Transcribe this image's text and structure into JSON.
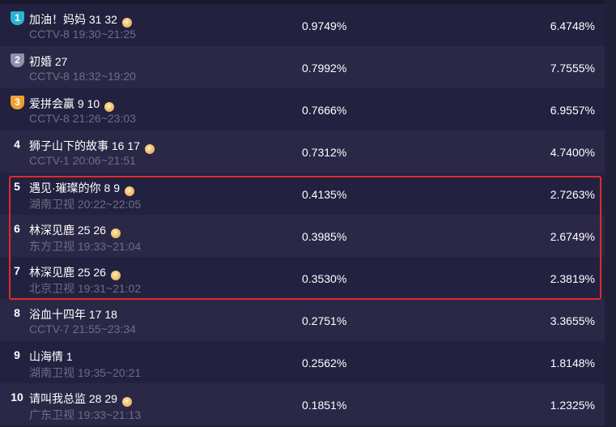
{
  "rows": [
    {
      "rank": "1",
      "medal": "#2bb3d6",
      "title": "加油！妈妈 31 32",
      "coin": true,
      "sub": "CCTV-8 19:30~21:25",
      "v1": "0.9749%",
      "v2": "6.4748%"
    },
    {
      "rank": "2",
      "medal": "#8d92ad",
      "title": "初婚 27",
      "coin": false,
      "sub": "CCTV-8 18:32~19:20",
      "v1": "0.7992%",
      "v2": "7.7555%"
    },
    {
      "rank": "3",
      "medal": "#f0a030",
      "title": "爱拼会赢 9 10",
      "coin": true,
      "sub": "CCTV-8 21:26~23:03",
      "v1": "0.7666%",
      "v2": "6.9557%"
    },
    {
      "rank": "4",
      "title": "狮子山下的故事 16 17",
      "coin": true,
      "sub": "CCTV-1 20:06~21:51",
      "v1": "0.7312%",
      "v2": "4.7400%"
    },
    {
      "rank": "5",
      "title": "遇见·璀璨的你 8 9",
      "coin": true,
      "sub": "湖南卫视 20:22~22:05",
      "v1": "0.4135%",
      "v2": "2.7263%"
    },
    {
      "rank": "6",
      "title": "林深见鹿 25 26",
      "coin": true,
      "sub": "东方卫视 19:33~21:04",
      "v1": "0.3985%",
      "v2": "2.6749%"
    },
    {
      "rank": "7",
      "title": "林深见鹿 25 26",
      "coin": true,
      "sub": "北京卫视 19:31~21:02",
      "v1": "0.3530%",
      "v2": "2.3819%"
    },
    {
      "rank": "8",
      "title": "浴血十四年 17 18",
      "coin": false,
      "sub": "CCTV-7 21:55~23:34",
      "v1": "0.2751%",
      "v2": "3.3655%"
    },
    {
      "rank": "9",
      "title": "山海情 1",
      "coin": false,
      "sub": "湖南卫视 19:35~20:21",
      "v1": "0.2562%",
      "v2": "1.8148%"
    },
    {
      "rank": "10",
      "title": "请叫我总监 28 29",
      "coin": true,
      "sub": "广东卫视 19:33~21:13",
      "v1": "0.1851%",
      "v2": "1.2325%"
    }
  ],
  "highlight_color": "#e02a2a"
}
